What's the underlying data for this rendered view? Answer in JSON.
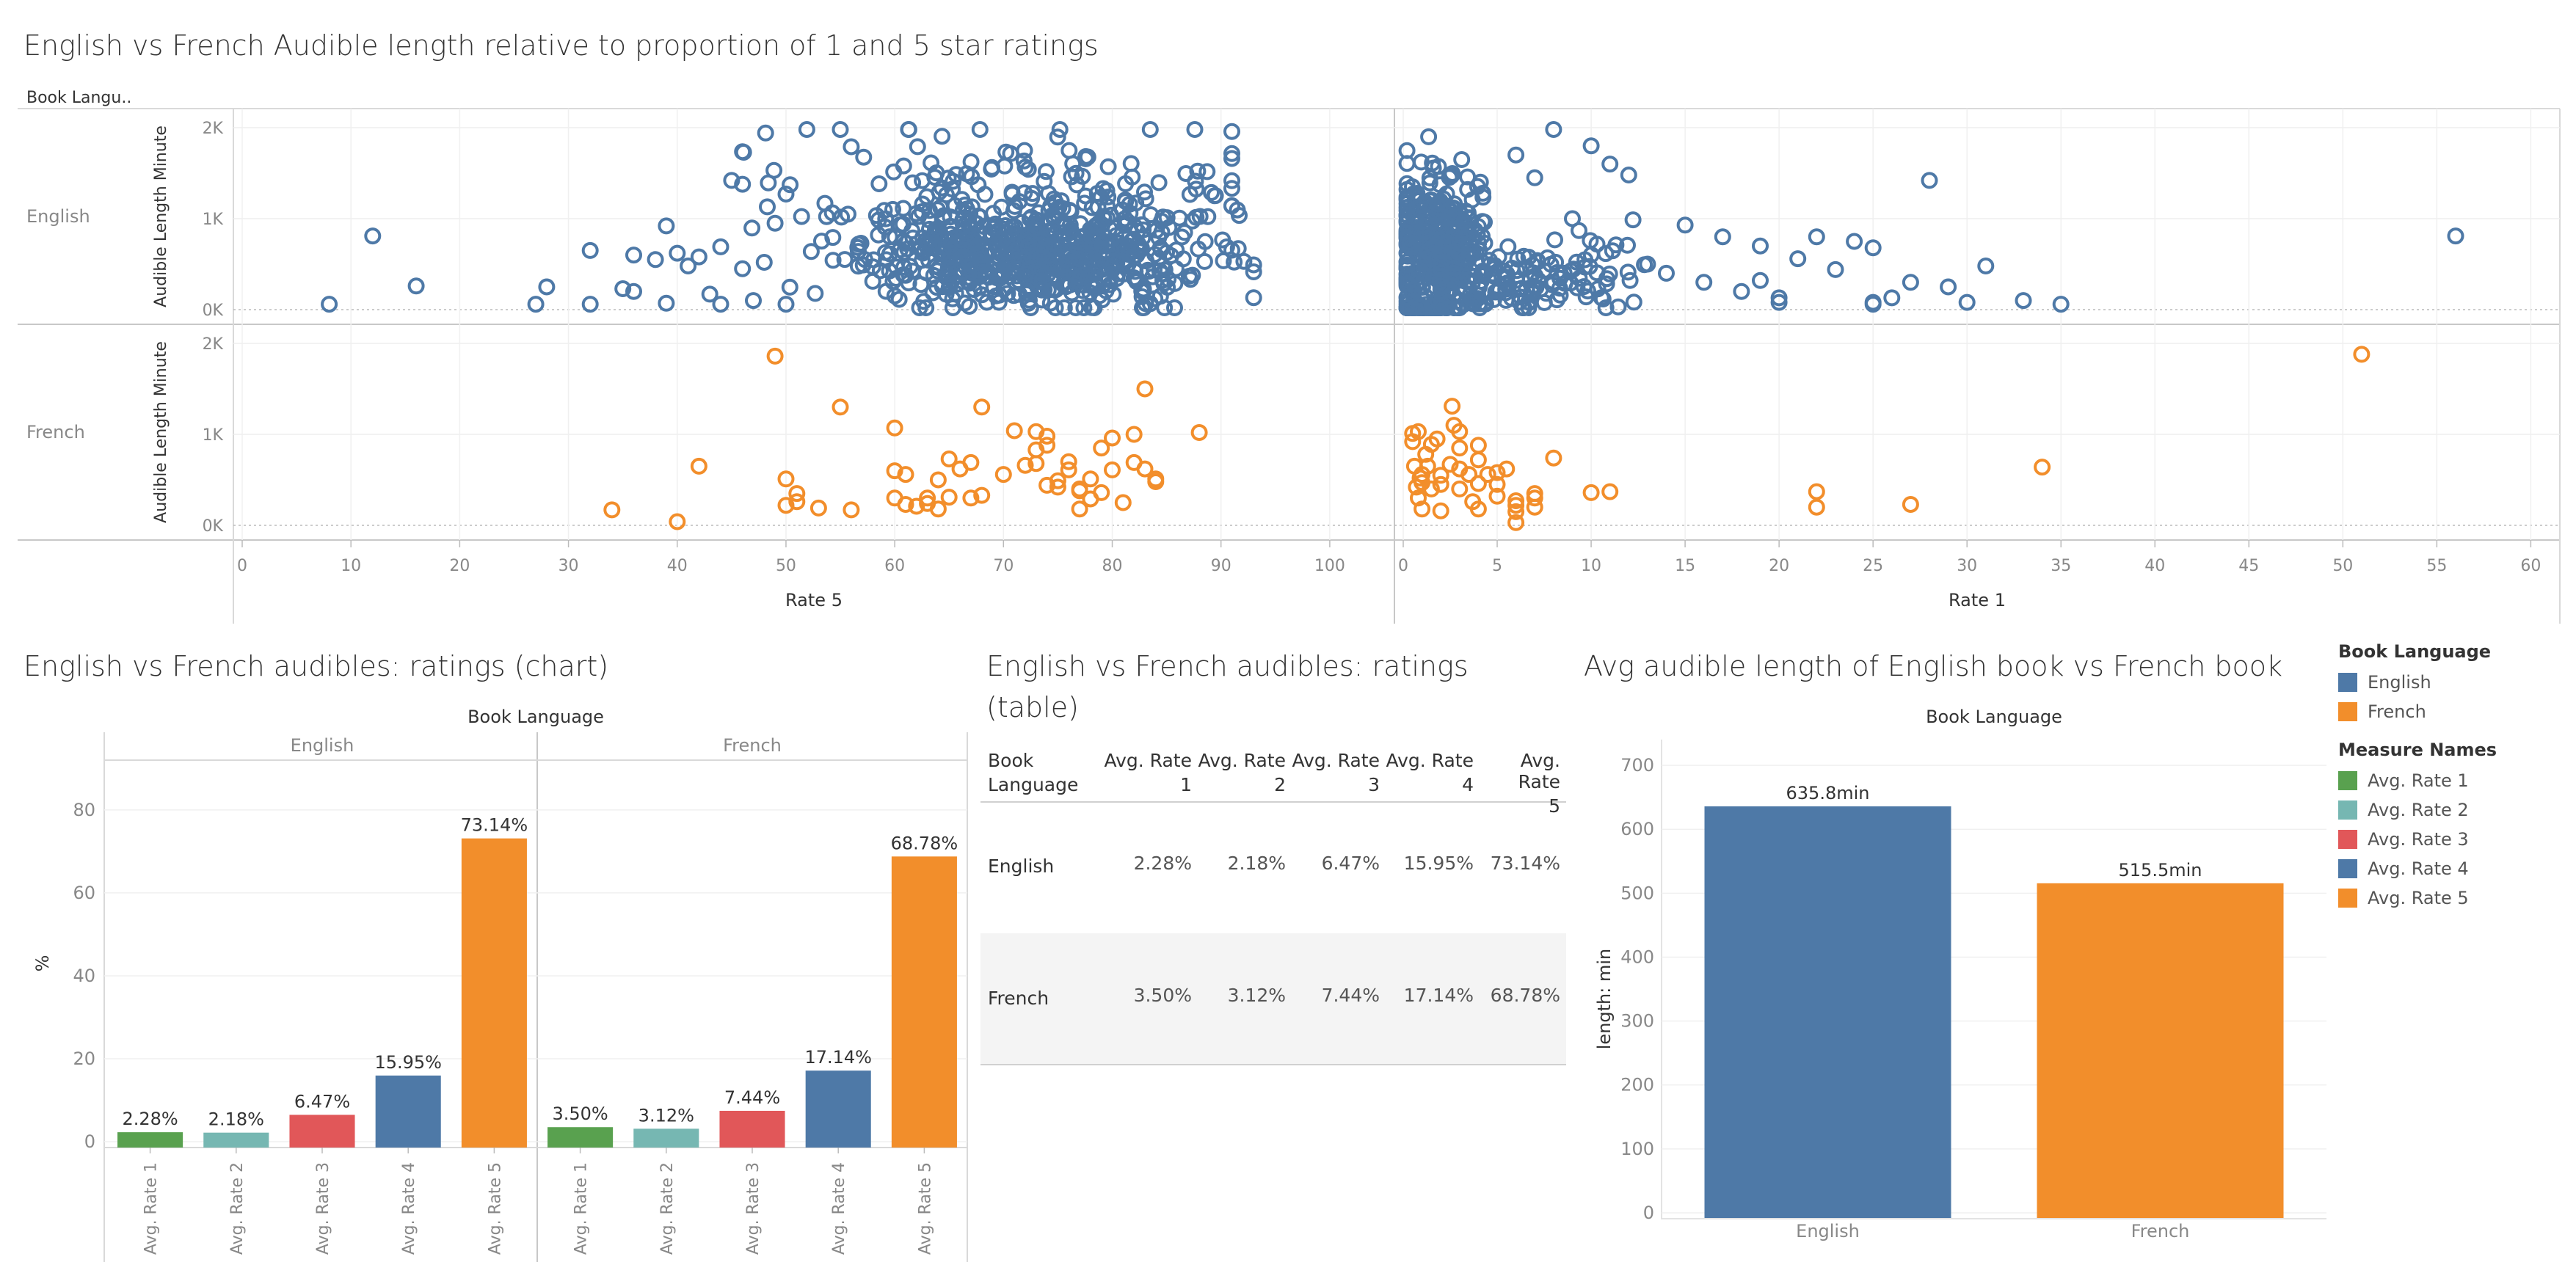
{
  "titles": {
    "scatter": "English vs French Audible length relative to proportion of 1 and 5 star ratings",
    "bar": "English vs French audibles:  ratings (chart)",
    "table_line1": "English vs French audibles:  ratings",
    "table_line2": "(table)",
    "avg": "Avg audible length of English book vs French book"
  },
  "colors": {
    "english": "#4e79a7",
    "french": "#f28e2b",
    "rate1": "#59a14f",
    "rate2": "#76b7b2",
    "rate3": "#e15759",
    "rate4": "#4e79a7",
    "rate5": "#f28e2b"
  },
  "legend": {
    "language_title": "Book Language",
    "language_items": [
      {
        "label": "English",
        "color": "#4e79a7"
      },
      {
        "label": "French",
        "color": "#f28e2b"
      }
    ],
    "measure_title": "Measure Names",
    "measure_items": [
      {
        "label": "Avg. Rate 1",
        "color": "#59a14f"
      },
      {
        "label": "Avg. Rate 2",
        "color": "#76b7b2"
      },
      {
        "label": "Avg. Rate 3",
        "color": "#e15759"
      },
      {
        "label": "Avg. Rate 4",
        "color": "#4e79a7"
      },
      {
        "label": "Avg. Rate 5",
        "color": "#f28e2b"
      }
    ]
  },
  "table": {
    "header_line1": [
      "Book",
      "Avg. Rate",
      "Avg. Rate",
      "Avg. Rate",
      "Avg. Rate",
      "Avg. Rate"
    ],
    "header_line2": [
      "Language",
      "1",
      "2",
      "3",
      "4",
      "5"
    ],
    "rows": [
      {
        "label": "English",
        "values": [
          "2.28%",
          "2.18%",
          "6.47%",
          "15.95%",
          "73.14%"
        ]
      },
      {
        "label": "French",
        "values": [
          "3.50%",
          "3.12%",
          "7.44%",
          "17.14%",
          "68.78%"
        ]
      }
    ]
  },
  "chart_data": [
    {
      "type": "scatter",
      "title": "English vs French Audible length relative to proportion of 1 and 5 star ratings",
      "row_header": "Book Langu..",
      "rows": [
        "English",
        "French"
      ],
      "ylabel": "Audible Length Minute",
      "y_ticks": [
        "0K",
        "1K",
        "2K"
      ],
      "ylim": [
        0,
        2000
      ],
      "panels": [
        {
          "xlabel": "Rate 5",
          "xlim": [
            0,
            105
          ],
          "x_ticks": [
            0,
            10,
            20,
            30,
            40,
            50,
            60,
            70,
            80,
            90,
            100
          ]
        },
        {
          "xlabel": "Rate 1",
          "xlim": [
            0,
            61
          ],
          "x_ticks": [
            0,
            5,
            10,
            15,
            20,
            25,
            30,
            35,
            40,
            45,
            50,
            55,
            60
          ]
        }
      ],
      "series": {
        "english_rate5": {
          "explicit": [
            [
              8,
              60
            ],
            [
              12,
              810
            ],
            [
              16,
              260
            ],
            [
              27,
              60
            ],
            [
              28,
              250
            ],
            [
              32,
              650
            ],
            [
              32,
              60
            ],
            [
              35,
              230
            ],
            [
              36,
              200
            ],
            [
              36,
              600
            ],
            [
              38,
              550
            ],
            [
              39,
              920
            ],
            [
              39,
              70
            ],
            [
              40,
              620
            ],
            [
              41,
              480
            ],
            [
              42,
              580
            ],
            [
              43,
              170
            ],
            [
              44,
              60
            ],
            [
              44,
              690
            ],
            [
              45,
              1420
            ],
            [
              46,
              450
            ],
            [
              47,
              100
            ],
            [
              48,
              520
            ],
            [
              49,
              950
            ],
            [
              50,
              1270
            ],
            [
              50,
              60
            ],
            [
              55,
              1980
            ],
            [
              56,
              1790
            ]
          ],
          "clusters": [
            {
              "n": 600,
              "cx": 73,
              "sx": 8,
              "cy": 560,
              "sy": 300,
              "xmin": 44,
              "xmax": 93,
              "ymin": 20,
              "ymax": 1980,
              "seed": 11
            },
            {
              "n": 160,
              "cx": 73,
              "sx": 11,
              "cy": 1200,
              "sy": 400,
              "xmin": 46,
              "xmax": 91,
              "ymin": 150,
              "ymax": 1980,
              "seed": 23
            }
          ]
        },
        "english_rate1": {
          "explicit": [
            [
              6,
              1700
            ],
            [
              7,
              1450
            ],
            [
              8,
              1980
            ],
            [
              9,
              1000
            ],
            [
              10,
              1800
            ],
            [
              11,
              1600
            ],
            [
              12,
              1480
            ],
            [
              13,
              500
            ],
            [
              14,
              400
            ],
            [
              15,
              930
            ],
            [
              16,
              300
            ],
            [
              17,
              800
            ],
            [
              18,
              200
            ],
            [
              19,
              700
            ],
            [
              19,
              320
            ],
            [
              20,
              80
            ],
            [
              21,
              560
            ],
            [
              22,
              800
            ],
            [
              23,
              440
            ],
            [
              24,
              750
            ],
            [
              25,
              680
            ],
            [
              25,
              80
            ],
            [
              26,
              130
            ],
            [
              27,
              300
            ],
            [
              28,
              1420
            ],
            [
              29,
              250
            ],
            [
              30,
              80
            ],
            [
              31,
              480
            ],
            [
              33,
              100
            ],
            [
              35,
              60
            ],
            [
              56,
              810
            ],
            [
              25,
              60
            ],
            [
              20,
              130
            ]
          ],
          "clusters": [
            {
              "n": 380,
              "cx": 1.8,
              "sx": 1.5,
              "cy": 650,
              "sy": 500,
              "xmin": 0.2,
              "xmax": 7,
              "ymin": 20,
              "ymax": 1980,
              "seed": 37
            },
            {
              "n": 140,
              "cx": 6,
              "sx": 3,
              "cy": 350,
              "sy": 250,
              "xmin": 2,
              "xmax": 13,
              "ymin": 20,
              "ymax": 1200,
              "seed": 41
            }
          ]
        },
        "french_rate5": {
          "explicit": [
            [
              34,
              170
            ],
            [
              40,
              40
            ],
            [
              42,
              650
            ],
            [
              49,
              1860
            ],
            [
              50,
              220
            ],
            [
              50,
              510
            ],
            [
              51,
              260
            ],
            [
              51,
              350
            ],
            [
              53,
              190
            ],
            [
              55,
              1300
            ],
            [
              56,
              170
            ],
            [
              60,
              1070
            ],
            [
              60,
              600
            ],
            [
              60,
              300
            ],
            [
              61,
              230
            ],
            [
              61,
              560
            ],
            [
              62,
              210
            ],
            [
              63,
              300
            ],
            [
              63,
              240
            ],
            [
              64,
              500
            ],
            [
              64,
              180
            ],
            [
              65,
              310
            ],
            [
              65,
              730
            ],
            [
              66,
              620
            ],
            [
              67,
              300
            ],
            [
              67,
              690
            ],
            [
              68,
              1300
            ],
            [
              68,
              330
            ],
            [
              70,
              560
            ],
            [
              71,
              1040
            ],
            [
              72,
              660
            ],
            [
              73,
              680
            ],
            [
              73,
              1030
            ],
            [
              73,
              830
            ],
            [
              74,
              440
            ],
            [
              74,
              880
            ],
            [
              74,
              980
            ],
            [
              75,
              490
            ],
            [
              75,
              420
            ],
            [
              76,
              700
            ],
            [
              76,
              610
            ],
            [
              77,
              400
            ],
            [
              77,
              380
            ],
            [
              77,
              180
            ],
            [
              78,
              510
            ],
            [
              78,
              290
            ],
            [
              79,
              360
            ],
            [
              79,
              850
            ],
            [
              80,
              610
            ],
            [
              80,
              960
            ],
            [
              81,
              250
            ],
            [
              82,
              1000
            ],
            [
              82,
              690
            ],
            [
              83,
              620
            ],
            [
              83,
              1500
            ],
            [
              84,
              480
            ],
            [
              84,
              510
            ],
            [
              88,
              1020
            ]
          ],
          "clusters": []
        },
        "french_rate1": {
          "explicit": [
            [
              0.5,
              1010
            ],
            [
              0.5,
              920
            ],
            [
              0.6,
              650
            ],
            [
              0.7,
              420
            ],
            [
              0.8,
              300
            ],
            [
              0.8,
              1030
            ],
            [
              0.9,
              520
            ],
            [
              1,
              560
            ],
            [
              1,
              180
            ],
            [
              1,
              470
            ],
            [
              1.2,
              780
            ],
            [
              1.3,
              650
            ],
            [
              1.5,
              400
            ],
            [
              1.5,
              890
            ],
            [
              1.8,
              950
            ],
            [
              2,
              550
            ],
            [
              2,
              450
            ],
            [
              2,
              160
            ],
            [
              2.5,
              670
            ],
            [
              2.6,
              1310
            ],
            [
              2.7,
              1100
            ],
            [
              3,
              400
            ],
            [
              3,
              620
            ],
            [
              3,
              850
            ],
            [
              3,
              1030
            ],
            [
              3.5,
              560
            ],
            [
              3.7,
              260
            ],
            [
              4,
              460
            ],
            [
              4,
              720
            ],
            [
              4,
              180
            ],
            [
              4,
              880
            ],
            [
              4.5,
              560
            ],
            [
              5,
              320
            ],
            [
              5,
              450
            ],
            [
              5,
              580
            ],
            [
              5.5,
              620
            ],
            [
              6,
              220
            ],
            [
              6,
              150
            ],
            [
              6,
              30
            ],
            [
              6,
              270
            ],
            [
              7,
              300
            ],
            [
              7,
              200
            ],
            [
              7,
              350
            ],
            [
              8,
              740
            ],
            [
              10,
              360
            ],
            [
              11,
              370
            ],
            [
              22,
              370
            ],
            [
              22,
              200
            ],
            [
              27,
              230
            ],
            [
              34,
              640
            ],
            [
              51,
              1880
            ]
          ],
          "clusters": []
        }
      }
    },
    {
      "type": "bar",
      "title": "English vs French audibles:  ratings (chart)",
      "facet_title": "Book Language",
      "facets": [
        "English",
        "French"
      ],
      "categories": [
        "Avg. Rate 1",
        "Avg. Rate 2",
        "Avg. Rate 3",
        "Avg. Rate 4",
        "Avg. Rate 5"
      ],
      "series": [
        {
          "name": "English",
          "values": [
            2.28,
            2.18,
            6.47,
            15.95,
            73.14
          ],
          "labels": [
            "2.28%",
            "2.18%",
            "6.47%",
            "15.95%",
            "73.14%"
          ]
        },
        {
          "name": "French",
          "values": [
            3.5,
            3.12,
            7.44,
            17.14,
            68.78
          ],
          "labels": [
            "3.50%",
            "3.12%",
            "7.44%",
            "17.14%",
            "68.78%"
          ]
        }
      ],
      "ylabel": "%",
      "y_ticks": [
        0,
        20,
        40,
        60,
        80
      ],
      "ylim": [
        0,
        86
      ]
    },
    {
      "type": "bar",
      "title": "Avg audible length of English book vs French book",
      "facet_title": "Book Language",
      "categories": [
        "English",
        "French"
      ],
      "values": [
        635.8,
        515.5
      ],
      "labels": [
        "635.8min",
        "515.5min"
      ],
      "ylabel": "length: min",
      "y_ticks": [
        0,
        100,
        200,
        300,
        400,
        500,
        600,
        700
      ],
      "ylim": [
        0,
        715
      ]
    }
  ]
}
